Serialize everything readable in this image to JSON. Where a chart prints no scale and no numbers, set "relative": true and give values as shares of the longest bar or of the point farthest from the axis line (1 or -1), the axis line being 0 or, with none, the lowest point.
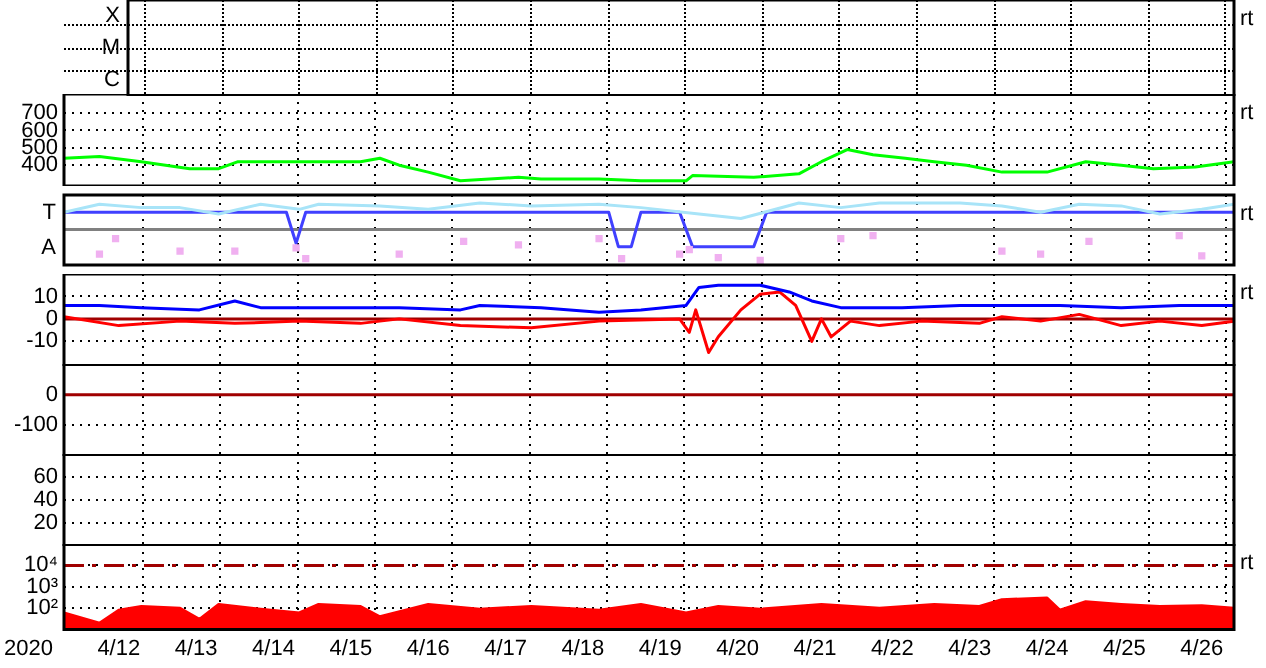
{
  "chart_data": [
    {
      "type": "other",
      "annotations": [
        "rt",
        "X",
        "M",
        "C"
      ]
    },
    {
      "type": "line",
      "xlim": [
        "2020-04-11T07:00",
        "2020-04-26T10:00"
      ],
      "xticks": [
        {
          "value": "2020-04-12T07:30",
          "label": null
        },
        {
          "value": "2020-04-13T07:30",
          "label": null
        },
        {
          "value": "2020-04-14T07:30",
          "label": null
        },
        {
          "value": "2020-04-15T07:30",
          "label": null
        },
        {
          "value": "2020-04-16T07:30",
          "label": null
        },
        {
          "value": "2020-04-17T07:30",
          "label": null
        },
        {
          "value": "2020-04-18T07:30",
          "label": null
        },
        {
          "value": "2020-04-19T07:30",
          "label": null
        },
        {
          "value": "2020-04-20T07:30",
          "label": null
        },
        {
          "value": "2020-04-21T07:30",
          "label": null
        },
        {
          "value": "2020-04-22T07:30",
          "label": null
        },
        {
          "value": "2020-04-23T07:30",
          "label": null
        },
        {
          "value": "2020-04-24T07:30",
          "label": null
        },
        {
          "value": "2020-04-25T07:30",
          "label": null
        },
        {
          "value": "2020-04-26T07:30",
          "label": null
        }
      ],
      "ylim": [
        280,
        810
      ],
      "yticks": [
        400,
        500,
        600,
        700
      ],
      "grid": true,
      "tick_labels": "y",
      "annotations": [
        "rt"
      ],
      "series": [
        {
          "color": "#00ff00",
          "x": [
            "2020-04-11T07:00",
            "2020-04-11T18:00",
            "2020-04-12T07:00",
            "2020-04-12T22:00",
            "2020-04-13T07:00",
            "2020-04-13T13:00",
            "2020-04-14T08:00",
            "2020-04-15T03:00",
            "2020-04-15T09:00",
            "2020-04-15T15:00",
            "2020-04-16T00:00",
            "2020-04-16T10:00",
            "2020-04-17T04:00",
            "2020-04-17T11:00",
            "2020-04-18T05:00",
            "2020-04-18T18:00",
            "2020-04-19T08:00",
            "2020-04-19T10:00",
            "2020-04-20T05:00",
            "2020-04-20T19:00",
            "2020-04-21T02:00",
            "2020-04-21T10:00",
            "2020-04-21T18:00",
            "2020-04-22T04:00",
            "2020-04-22T13:00",
            "2020-04-22T23:00",
            "2020-04-23T10:00",
            "2020-04-24T00:00",
            "2020-04-24T12:00",
            "2020-04-24T23:00",
            "2020-04-25T09:00",
            "2020-04-25T22:00",
            "2020-04-26T10:00"
          ],
          "values": [
            440,
            450,
            420,
            380,
            380,
            420,
            420,
            420,
            440,
            400,
            360,
            310,
            330,
            320,
            320,
            310,
            310,
            340,
            330,
            350,
            420,
            490,
            460,
            440,
            420,
            400,
            360,
            360,
            420,
            400,
            380,
            390,
            420
          ]
        }
      ]
    },
    {
      "type": "line",
      "relative": true,
      "xlim": [
        "2020-04-11T07:00",
        "2020-04-26T10:00"
      ],
      "xticks": [
        {
          "value": "2020-04-12T07:30",
          "label": null
        },
        {
          "value": "2020-04-13T07:30",
          "label": null
        },
        {
          "value": "2020-04-14T07:30",
          "label": null
        },
        {
          "value": "2020-04-15T07:30",
          "label": null
        },
        {
          "value": "2020-04-16T07:30",
          "label": null
        },
        {
          "value": "2020-04-17T07:30",
          "label": null
        },
        {
          "value": "2020-04-18T07:30",
          "label": null
        },
        {
          "value": "2020-04-19T07:30",
          "label": null
        },
        {
          "value": "2020-04-20T07:30",
          "label": null
        },
        {
          "value": "2020-04-21T07:30",
          "label": null
        },
        {
          "value": "2020-04-22T07:30",
          "label": null
        },
        {
          "value": "2020-04-23T07:30",
          "label": null
        },
        {
          "value": "2020-04-24T07:30",
          "label": null
        },
        {
          "value": "2020-04-25T07:30",
          "label": null
        },
        {
          "value": "2020-04-26T07:30",
          "label": null
        }
      ],
      "grid": "x",
      "tick_labels": "y",
      "annotations": [
        "rt",
        "T",
        "A"
      ],
      "ref_lines": [
        {
          "axis": "y",
          "value": 0.54,
          "label": null,
          "color": "#808080"
        }
      ],
      "series": [
        {
          "color": "#a8e4f8",
          "x": [
            "2020-04-11T07:00",
            "2020-04-11T18:00",
            "2020-04-12T07:00",
            "2020-04-12T19:00",
            "2020-04-13T07:00",
            "2020-04-13T20:00",
            "2020-04-14T08:00",
            "2020-04-14T14:00",
            "2020-04-15T09:00",
            "2020-04-16T00:00",
            "2020-04-16T16:00",
            "2020-04-17T08:00",
            "2020-04-18T05:00",
            "2020-04-18T18:00",
            "2020-04-19T12:00",
            "2020-04-20T01:00",
            "2020-04-20T19:00",
            "2020-04-21T08:00",
            "2020-04-21T20:00",
            "2020-04-22T09:00",
            "2020-04-22T21:00",
            "2020-04-23T10:00",
            "2020-04-23T22:00",
            "2020-04-24T10:00",
            "2020-04-24T23:00",
            "2020-04-25T11:00",
            "2020-04-26T00:00",
            "2020-04-26T10:00"
          ],
          "values": [
            0.84,
            0.98,
            0.92,
            0.92,
            0.81,
            0.98,
            0.89,
            0.98,
            0.95,
            0.89,
            1,
            0.95,
            0.98,
            0.92,
            0.81,
            0.73,
            1,
            0.92,
            1,
            1,
            1,
            0.95,
            0.84,
            0.98,
            0.95,
            0.81,
            0.89,
            0.98
          ]
        },
        {
          "type": "scatter",
          "marker": "square",
          "color": "#f0b0f0",
          "x": [
            "2020-04-11T18:00",
            "2020-04-11T23:00",
            "2020-04-12T19:00",
            "2020-04-13T12:00",
            "2020-04-14T07:00",
            "2020-04-14T10:00",
            "2020-04-15T15:00",
            "2020-04-16T11:00",
            "2020-04-17T04:00",
            "2020-04-18T05:00",
            "2020-04-18T12:00",
            "2020-04-19T06:00",
            "2020-04-19T09:00",
            "2020-04-19T18:00",
            "2020-04-20T07:00",
            "2020-04-21T08:00",
            "2020-04-21T18:00",
            "2020-04-23T10:00",
            "2020-04-23T22:00",
            "2020-04-24T13:00",
            "2020-04-25T17:00",
            "2020-04-26T00:00"
          ],
          "values": [
            0.11,
            0.38,
            0.16,
            0.16,
            0.22,
            0.03,
            0.11,
            0.33,
            0.27,
            0.38,
            0.03,
            0.11,
            0.19,
            0.05,
            0,
            0.38,
            0.43,
            0.16,
            0.11,
            0.33,
            0.43,
            0.08
          ]
        },
        {
          "color": "#4040ff",
          "x": [
            "2020-04-11T07:00",
            "2020-04-14T04:00",
            "2020-04-14T07:00",
            "2020-04-14T10:00",
            "2020-04-18T08:00",
            "2020-04-18T11:00",
            "2020-04-18T15:00",
            "2020-04-18T18:00",
            "2020-04-19T06:00",
            "2020-04-19T10:00",
            "2020-04-20T05:00",
            "2020-04-20T09:00",
            "2020-04-26T10:00"
          ],
          "values": [
            0.84,
            0.84,
            0.3,
            0.84,
            0.84,
            0.24,
            0.24,
            0.84,
            0.84,
            0.24,
            0.24,
            0.84,
            0.84
          ]
        }
      ]
    },
    {
      "type": "line",
      "xlim": [
        "2020-04-11T07:00",
        "2020-04-26T10:00"
      ],
      "xticks": [
        {
          "value": "2020-04-12T07:30",
          "label": null
        },
        {
          "value": "2020-04-13T07:30",
          "label": null
        },
        {
          "value": "2020-04-14T07:30",
          "label": null
        },
        {
          "value": "2020-04-15T07:30",
          "label": null
        },
        {
          "value": "2020-04-16T07:30",
          "label": null
        },
        {
          "value": "2020-04-17T07:30",
          "label": null
        },
        {
          "value": "2020-04-18T07:30",
          "label": null
        },
        {
          "value": "2020-04-19T07:30",
          "label": null
        },
        {
          "value": "2020-04-20T07:30",
          "label": null
        },
        {
          "value": "2020-04-21T07:30",
          "label": null
        },
        {
          "value": "2020-04-22T07:30",
          "label": null
        },
        {
          "value": "2020-04-23T07:30",
          "label": null
        },
        {
          "value": "2020-04-24T07:30",
          "label": null
        },
        {
          "value": "2020-04-25T07:30",
          "label": null
        },
        {
          "value": "2020-04-26T07:30",
          "label": null
        }
      ],
      "ylim": [
        -21,
        20
      ],
      "yticks": [
        10,
        0,
        -10
      ],
      "grid": true,
      "tick_labels": "y",
      "annotations": [
        "rt"
      ],
      "ref_lines": [
        {
          "axis": "y",
          "value": 0,
          "label": null,
          "color": "#a00000"
        }
      ],
      "series": [
        {
          "color": "#0000ff",
          "x": [
            "2020-04-11T07:00",
            "2020-04-11T18:00",
            "2020-04-12T07:00",
            "2020-04-13T01:00",
            "2020-04-13T12:00",
            "2020-04-13T20:00",
            "2020-04-14T14:00",
            "2020-04-15T15:00",
            "2020-04-16T10:00",
            "2020-04-16T16:00",
            "2020-04-17T11:00",
            "2020-04-18T05:00",
            "2020-04-18T18:00",
            "2020-04-19T08:00",
            "2020-04-19T12:00",
            "2020-04-19T18:00",
            "2020-04-20T07:00",
            "2020-04-20T16:00",
            "2020-04-20T23:00",
            "2020-04-21T08:00",
            "2020-04-22T03:00",
            "2020-04-22T21:00",
            "2020-04-23T10:00",
            "2020-04-24T04:00",
            "2020-04-24T23:00",
            "2020-04-25T17:00",
            "2020-04-26T10:00"
          ],
          "values": [
            6,
            6,
            5,
            4,
            8,
            5,
            5,
            5,
            4,
            6,
            5,
            3,
            4,
            6,
            14,
            15,
            15,
            12,
            8,
            5,
            5,
            6,
            6,
            6,
            5,
            6,
            6
          ]
        },
        {
          "color": "#ff0000",
          "x": [
            "2020-04-11T07:00",
            "2020-04-12T00:00",
            "2020-04-12T19:00",
            "2020-04-13T12:00",
            "2020-04-14T08:00",
            "2020-04-15T03:00",
            "2020-04-15T15:00",
            "2020-04-16T10:00",
            "2020-04-17T08:00",
            "2020-04-18T05:00",
            "2020-04-19T06:00",
            "2020-04-19T09:00",
            "2020-04-19T11:00",
            "2020-04-19T15:00",
            "2020-04-19T18:00",
            "2020-04-20T01:00",
            "2020-04-20T07:00",
            "2020-04-20T13:00",
            "2020-04-20T18:00",
            "2020-04-20T23:00",
            "2020-04-21T02:00",
            "2020-04-21T05:00",
            "2020-04-21T11:00",
            "2020-04-21T20:00",
            "2020-04-22T09:00",
            "2020-04-23T03:00",
            "2020-04-23T10:00",
            "2020-04-23T22:00",
            "2020-04-24T10:00",
            "2020-04-24T23:00",
            "2020-04-25T11:00",
            "2020-04-26T00:00",
            "2020-04-26T10:00"
          ],
          "values": [
            1,
            -3,
            -1,
            -2,
            -1,
            -2,
            0,
            -3,
            -4,
            -1,
            0,
            -6,
            4,
            -15,
            -8,
            4,
            11,
            12,
            6,
            -10,
            0,
            -8,
            -1,
            -3,
            -1,
            -2,
            1,
            -1,
            2,
            -3,
            -1,
            -3,
            -1
          ]
        }
      ]
    },
    {
      "type": "line",
      "xlim": [
        "2020-04-11T07:00",
        "2020-04-26T10:00"
      ],
      "xticks": [
        {
          "value": "2020-04-12T07:30",
          "label": null
        },
        {
          "value": "2020-04-13T07:30",
          "label": null
        },
        {
          "value": "2020-04-14T07:30",
          "label": null
        },
        {
          "value": "2020-04-15T07:30",
          "label": null
        },
        {
          "value": "2020-04-16T07:30",
          "label": null
        },
        {
          "value": "2020-04-17T07:30",
          "label": null
        },
        {
          "value": "2020-04-18T07:30",
          "label": null
        },
        {
          "value": "2020-04-19T07:30",
          "label": null
        },
        {
          "value": "2020-04-20T07:30",
          "label": null
        },
        {
          "value": "2020-04-21T07:30",
          "label": null
        },
        {
          "value": "2020-04-22T07:30",
          "label": null
        },
        {
          "value": "2020-04-23T07:30",
          "label": null
        },
        {
          "value": "2020-04-24T07:30",
          "label": null
        },
        {
          "value": "2020-04-25T07:30",
          "label": null
        },
        {
          "value": "2020-04-26T07:30",
          "label": null
        }
      ],
      "ylim": [
        -200,
        100
      ],
      "yticks": [
        0,
        -100
      ],
      "grid": true,
      "tick_labels": "y",
      "ref_lines": [
        {
          "axis": "y",
          "value": 0,
          "label": null,
          "color": "#a00000"
        }
      ]
    },
    {
      "type": "line",
      "xlim": [
        "2020-04-11T07:00",
        "2020-04-26T10:00"
      ],
      "xticks": [
        {
          "value": "2020-04-12T07:30",
          "label": null
        },
        {
          "value": "2020-04-13T07:30",
          "label": null
        },
        {
          "value": "2020-04-14T07:30",
          "label": null
        },
        {
          "value": "2020-04-15T07:30",
          "label": null
        },
        {
          "value": "2020-04-16T07:30",
          "label": null
        },
        {
          "value": "2020-04-17T07:30",
          "label": null
        },
        {
          "value": "2020-04-18T07:30",
          "label": null
        },
        {
          "value": "2020-04-19T07:30",
          "label": null
        },
        {
          "value": "2020-04-20T07:30",
          "label": null
        },
        {
          "value": "2020-04-21T07:30",
          "label": null
        },
        {
          "value": "2020-04-22T07:30",
          "label": null
        },
        {
          "value": "2020-04-23T07:30",
          "label": null
        },
        {
          "value": "2020-04-24T07:30",
          "label": null
        },
        {
          "value": "2020-04-25T07:30",
          "label": null
        },
        {
          "value": "2020-04-26T07:30",
          "label": null
        }
      ],
      "ylim": [
        0,
        80
      ],
      "yticks": [
        60,
        40,
        20
      ],
      "grid": true,
      "tick_labels": "y"
    },
    {
      "type": "area",
      "log": "y",
      "xlabel": "2020",
      "xlim": [
        "2020-04-11T07:00",
        "2020-04-26T10:00"
      ],
      "xticks": [
        {
          "value": "2020-04-12T00:00",
          "label": "4/12"
        },
        {
          "value": "2020-04-13T00:00",
          "label": "4/13"
        },
        {
          "value": "2020-04-14T00:00",
          "label": "4/14"
        },
        {
          "value": "2020-04-15T00:00",
          "label": "4/15"
        },
        {
          "value": "2020-04-16T00:00",
          "label": "4/16"
        },
        {
          "value": "2020-04-17T00:00",
          "label": "4/17"
        },
        {
          "value": "2020-04-18T00:00",
          "label": "4/18"
        },
        {
          "value": "2020-04-19T00:00",
          "label": "4/19"
        },
        {
          "value": "2020-04-20T00:00",
          "label": "4/20"
        },
        {
          "value": "2020-04-21T00:00",
          "label": "4/21"
        },
        {
          "value": "2020-04-22T00:00",
          "label": "4/22"
        },
        {
          "value": "2020-04-23T00:00",
          "label": "4/23"
        },
        {
          "value": "2020-04-24T00:00",
          "label": "4/24"
        },
        {
          "value": "2020-04-25T00:00",
          "label": "4/25"
        },
        {
          "value": "2020-04-26T00:00",
          "label": "4/26"
        },
        {
          "value": "2020-04-12T07:30",
          "label": null
        },
        {
          "value": "2020-04-13T07:30",
          "label": null
        },
        {
          "value": "2020-04-14T07:30",
          "label": null
        },
        {
          "value": "2020-04-15T07:30",
          "label": null
        },
        {
          "value": "2020-04-16T07:30",
          "label": null
        },
        {
          "value": "2020-04-17T07:30",
          "label": null
        },
        {
          "value": "2020-04-18T07:30",
          "label": null
        },
        {
          "value": "2020-04-19T07:30",
          "label": null
        },
        {
          "value": "2020-04-20T07:30",
          "label": null
        },
        {
          "value": "2020-04-21T07:30",
          "label": null
        },
        {
          "value": "2020-04-22T07:30",
          "label": null
        },
        {
          "value": "2020-04-23T07:30",
          "label": null
        },
        {
          "value": "2020-04-24T07:30",
          "label": null
        },
        {
          "value": "2020-04-25T07:30",
          "label": null
        },
        {
          "value": "2020-04-26T07:30",
          "label": null
        }
      ],
      "ylim": [
        10,
        100000
      ],
      "yticks": [
        {
          "value": 10000,
          "label": "10⁴"
        },
        {
          "value": 1000,
          "label": "10³"
        },
        {
          "value": 100,
          "label": "10²"
        }
      ],
      "grid": true,
      "annotations": [
        "rt"
      ],
      "ref_lines": [
        {
          "axis": "y",
          "value": 10000,
          "label": null,
          "color": "#a00000",
          "line_style": "dashed"
        }
      ],
      "series": [
        {
          "color": "#ff0000",
          "x": [
            "2020-04-11T07:00",
            "2020-04-11T18:00",
            "2020-04-12T00:00",
            "2020-04-12T07:00",
            "2020-04-12T19:00",
            "2020-04-13T01:00",
            "2020-04-13T07:00",
            "2020-04-13T20:00",
            "2020-04-14T08:00",
            "2020-04-14T14:00",
            "2020-04-15T03:00",
            "2020-04-15T09:00",
            "2020-04-16T00:00",
            "2020-04-16T16:00",
            "2020-04-17T08:00",
            "2020-04-18T05:00",
            "2020-04-18T18:00",
            "2020-04-19T08:00",
            "2020-04-19T18:00",
            "2020-04-20T07:00",
            "2020-04-21T02:00",
            "2020-04-21T20:00",
            "2020-04-22T13:00",
            "2020-04-23T03:00",
            "2020-04-23T10:00",
            "2020-04-24T00:00",
            "2020-04-24T04:00",
            "2020-04-24T12:00",
            "2020-04-24T23:00",
            "2020-04-25T11:00",
            "2020-04-26T00:00",
            "2020-04-26T10:00"
          ],
          "values": [
            60,
            20,
            80,
            120,
            100,
            30,
            150,
            90,
            60,
            150,
            120,
            40,
            150,
            90,
            120,
            80,
            150,
            60,
            120,
            90,
            150,
            100,
            150,
            120,
            250,
            300,
            80,
            200,
            150,
            120,
            130,
            100
          ]
        }
      ]
    }
  ]
}
